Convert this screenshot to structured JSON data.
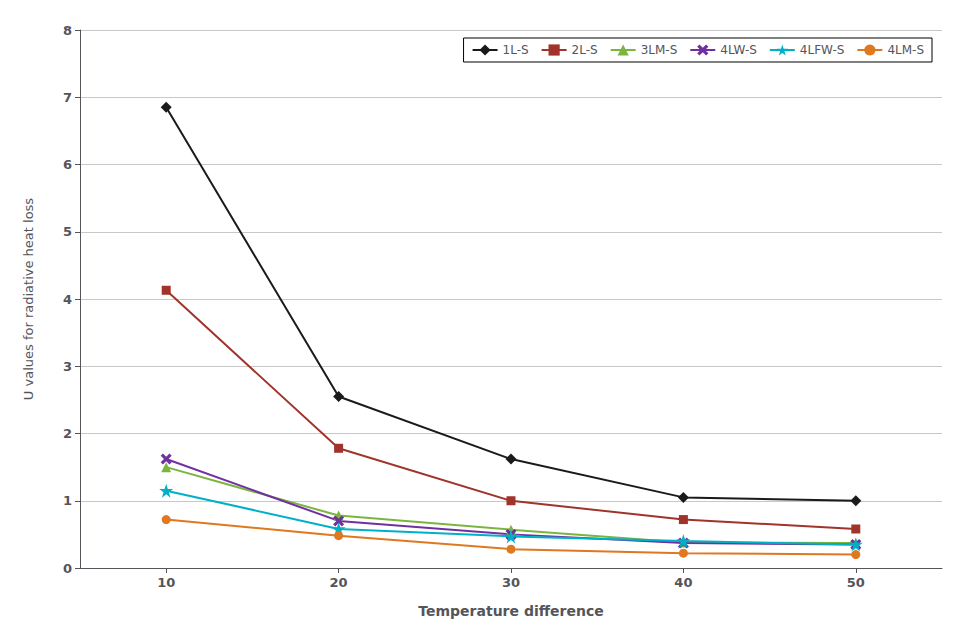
{
  "chart_data": {
    "type": "line",
    "xlabel": "Temperature difference",
    "ylabel": "U values for radiative heat loss",
    "x": [
      10,
      20,
      30,
      40,
      50
    ],
    "series": [
      {
        "name": "1L-S",
        "color": "#1a1a1a",
        "marker": "diamond",
        "values": [
          6.85,
          2.55,
          1.62,
          1.05,
          1.0
        ]
      },
      {
        "name": "2L-S",
        "color": "#a0342a",
        "marker": "square",
        "values": [
          4.13,
          1.78,
          1.0,
          0.72,
          0.58
        ]
      },
      {
        "name": "3LM-S",
        "color": "#7ab540",
        "marker": "triangle",
        "values": [
          1.5,
          0.78,
          0.57,
          0.38,
          0.37
        ]
      },
      {
        "name": "4LW-S",
        "color": "#7030a0",
        "marker": "x",
        "values": [
          1.62,
          0.7,
          0.5,
          0.37,
          0.35
        ]
      },
      {
        "name": "4LFW-S",
        "color": "#00b0c8",
        "marker": "star",
        "values": [
          1.15,
          0.58,
          0.47,
          0.4,
          0.35
        ]
      },
      {
        "name": "4LM-S",
        "color": "#e07820",
        "marker": "circle",
        "values": [
          0.72,
          0.48,
          0.28,
          0.22,
          0.2
        ]
      }
    ],
    "xlim": [
      5,
      55
    ],
    "ylim": [
      0,
      8
    ],
    "xticks": [
      10,
      20,
      30,
      40,
      50
    ],
    "yticks": [
      0,
      1,
      2,
      3,
      4,
      5,
      6,
      7,
      8
    ],
    "grid": "y",
    "legend": "upper right"
  }
}
